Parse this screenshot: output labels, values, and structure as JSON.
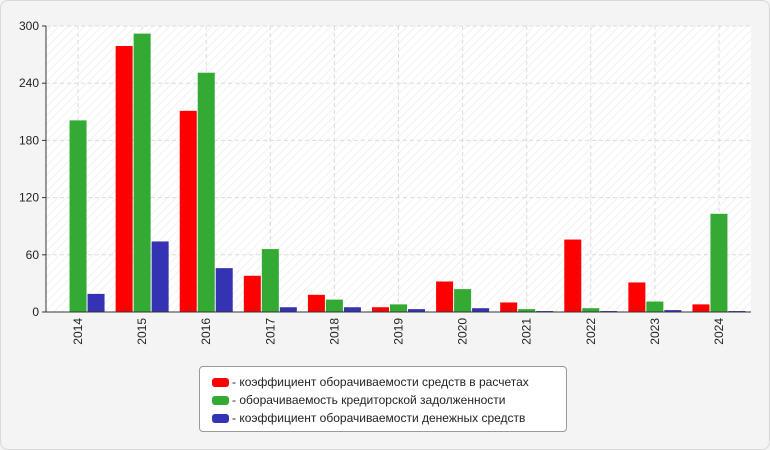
{
  "chart_data": {
    "type": "bar",
    "categories": [
      "2014",
      "2015",
      "2016",
      "2017",
      "2018",
      "2019",
      "2020",
      "2021",
      "2022",
      "2023",
      "2024"
    ],
    "series": [
      {
        "name": "коэффициент оборачиваемости средств в расчетах",
        "color": "#ff0000",
        "values": [
          0,
          279,
          211,
          38,
          18,
          5,
          32,
          10,
          76,
          31,
          8
        ]
      },
      {
        "name": "оборачиваемость кредиторской задолженности",
        "color": "#33aa33",
        "values": [
          201,
          292,
          251,
          66,
          13,
          8,
          24,
          3,
          4,
          11,
          103
        ]
      },
      {
        "name": "коэффициент оборачиваемости денежных средств",
        "color": "#3333b3",
        "values": [
          19,
          74,
          46,
          5,
          5,
          3,
          4,
          1,
          1,
          2,
          1
        ]
      }
    ],
    "yticks": [
      "0",
      "60",
      "120",
      "180",
      "240",
      "300"
    ],
    "ylim": [
      0,
      300
    ],
    "grid": true,
    "legend_position": "bottom"
  }
}
